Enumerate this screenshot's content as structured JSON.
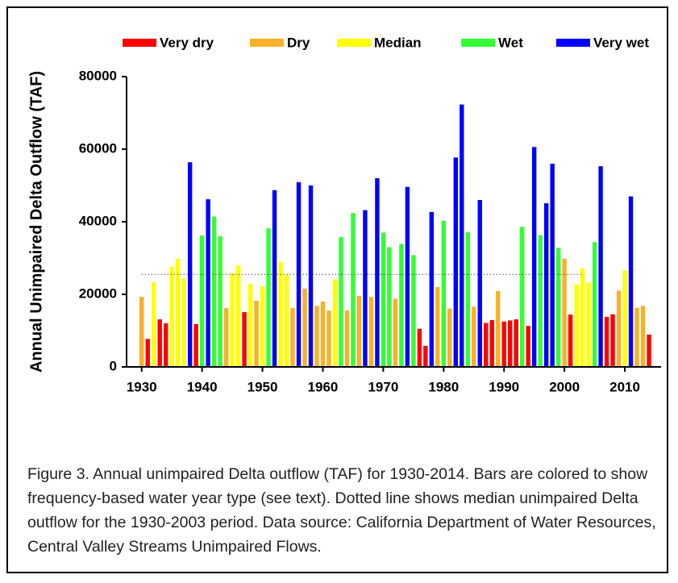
{
  "chart_data": {
    "type": "bar",
    "y_label": "Annual Unimpaired Delta Outflow (TAF)",
    "xlim": [
      1927.5,
      2016
    ],
    "xticks": [
      1930,
      1940,
      1950,
      1960,
      1970,
      1980,
      1990,
      2000,
      2010
    ],
    "ylim": [
      0,
      80000
    ],
    "yticks": [
      0,
      20000,
      40000,
      60000,
      80000
    ],
    "grid": false,
    "legend": "top",
    "series": [
      {
        "name": "Very dry",
        "color": "#ff0000",
        "x": [
          1931,
          1933,
          1934,
          1939,
          1947,
          1976,
          1977,
          1987,
          1988,
          1990,
          1991,
          1992,
          1994,
          2001,
          2007,
          2008,
          2014
        ],
        "values": [
          7700,
          13100,
          12000,
          11800,
          15100,
          10500,
          5800,
          12100,
          12900,
          12500,
          12800,
          13100,
          11300,
          14400,
          13800,
          14500,
          8900
        ]
      },
      {
        "name": "Dry",
        "color": "#f8b128",
        "x": [
          1930,
          1944,
          1949,
          1955,
          1957,
          1959,
          1960,
          1961,
          1964,
          1966,
          1968,
          1972,
          1979,
          1981,
          1985,
          1989,
          2000,
          2009,
          2012,
          2013
        ],
        "values": [
          19300,
          16200,
          18200,
          16200,
          21600,
          16800,
          18000,
          15500,
          15600,
          19600,
          19300,
          18800,
          22000,
          16100,
          16600,
          20900,
          29800,
          21000,
          16300,
          16800
        ]
      },
      {
        "name": "Median",
        "color": "#ffff00",
        "x": [
          1932,
          1935,
          1936,
          1937,
          1945,
          1946,
          1948,
          1950,
          1953,
          1954,
          1962,
          2002,
          2003,
          2004,
          2010
        ],
        "values": [
          23300,
          27600,
          29800,
          24400,
          25800,
          28000,
          22900,
          22200,
          29000,
          25400,
          24100,
          22700,
          27100,
          23200,
          26600
        ]
      },
      {
        "name": "Wet",
        "color": "#33ff33",
        "x": [
          1940,
          1942,
          1943,
          1951,
          1963,
          1965,
          1970,
          1971,
          1973,
          1975,
          1980,
          1984,
          1993,
          1996,
          1999,
          2005
        ],
        "values": [
          36200,
          41400,
          36000,
          38200,
          35800,
          42400,
          37000,
          33000,
          33900,
          30800,
          40300,
          37100,
          38600,
          36300,
          32800,
          34400
        ]
      },
      {
        "name": "Very wet",
        "color": "#0000ff",
        "x": [
          1938,
          1941,
          1952,
          1956,
          1958,
          1967,
          1969,
          1974,
          1978,
          1982,
          1983,
          1986,
          1995,
          1997,
          1998,
          2006,
          2011
        ],
        "values": [
          56400,
          46200,
          48700,
          50900,
          50000,
          43200,
          52000,
          49600,
          42700,
          57700,
          72300,
          46000,
          60600,
          45100,
          56000,
          55300,
          47000
        ]
      }
    ],
    "reference_line": {
      "value": 25500,
      "x": [
        1930,
        2003
      ]
    },
    "caption": "Figure 3. Annual unimpaired Delta outflow (TAF) for 1930-2014.  Bars are colored to show frequency-based water year type (see text). Dotted line shows median unimpaired Delta outflow for the 1930-2003 period. Data source: California Department of Water Resources, Central Valley Streams Unimpaired Flows."
  }
}
